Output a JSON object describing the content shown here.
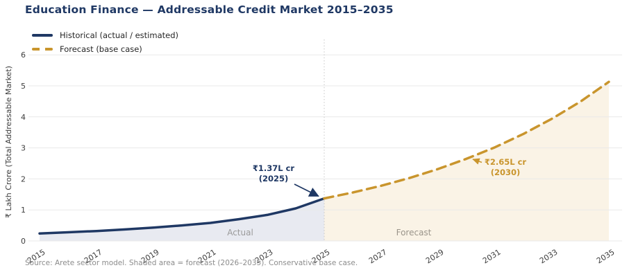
{
  "title": "Education Finance — Addressable Credit Market 2015–2035",
  "legend": {
    "items": [
      {
        "label": "Historical (actual / estimated)",
        "color": "#1f3864",
        "style": "solid"
      },
      {
        "label": "Forecast (base case)",
        "color": "#c9952d",
        "style": "dashed"
      }
    ]
  },
  "source_note": "Source: Arete sector model. Shaded area = forecast (2026–2035). Conservative base case.",
  "colors": {
    "title": "#1f3864",
    "historical_line": "#1f3864",
    "forecast_line": "#c9952d",
    "actual_area": "#e8eaf1",
    "forecast_area": "#faf3e6",
    "gridline": "#e9e9e9",
    "divider_line": "#c6c6c6",
    "tick_label": "#3d3d3d",
    "source_text": "#8c8c8c"
  },
  "chart_data": {
    "type": "line",
    "title": "Education Finance — Addressable Credit Market 2015–2035",
    "xlabel": "",
    "ylabel": "₹ Lakh Crore (Total Addressable Market)",
    "xlim": [
      2015,
      2035
    ],
    "ylim": [
      0,
      6.5
    ],
    "grid": true,
    "legend_position": "upper-left",
    "xticks": [
      2015,
      2017,
      2019,
      2021,
      2023,
      2025,
      2027,
      2029,
      2031,
      2033,
      2035
    ],
    "yticks": [
      0,
      1,
      2,
      3,
      4,
      5,
      6
    ],
    "series": [
      {
        "name": "Historical (actual / estimated)",
        "style": "solid",
        "color": "#1f3864",
        "area_color": "#e8eaf1",
        "x": [
          2015,
          2016,
          2017,
          2018,
          2019,
          2020,
          2021,
          2022,
          2023,
          2024,
          2025
        ],
        "values": [
          0.24,
          0.28,
          0.32,
          0.37,
          0.43,
          0.5,
          0.58,
          0.7,
          0.84,
          1.05,
          1.37
        ]
      },
      {
        "name": "Forecast (base case)",
        "style": "dashed",
        "color": "#c9952d",
        "area_color": "#faf3e6",
        "x": [
          2025,
          2026,
          2027,
          2028,
          2029,
          2030,
          2031,
          2032,
          2033,
          2034,
          2035
        ],
        "values": [
          1.37,
          1.56,
          1.78,
          2.03,
          2.32,
          2.65,
          3.02,
          3.45,
          3.94,
          4.49,
          5.13
        ]
      }
    ],
    "annotations": [
      {
        "line1": "₹1.37L cr",
        "line2": "(2025)",
        "x": 2025,
        "y": 1.37,
        "color": "#1f3864"
      },
      {
        "line1": "₹2.65L cr",
        "line2": "(2030)",
        "x": 2030,
        "y": 2.65,
        "color": "#c9952d"
      }
    ],
    "region_labels": [
      {
        "text": "Actual",
        "x": 2022,
        "color": "#9a9a9a"
      },
      {
        "text": "Forecast",
        "x": 2028.1,
        "color": "#9a948a"
      }
    ],
    "divider_x": 2025
  }
}
